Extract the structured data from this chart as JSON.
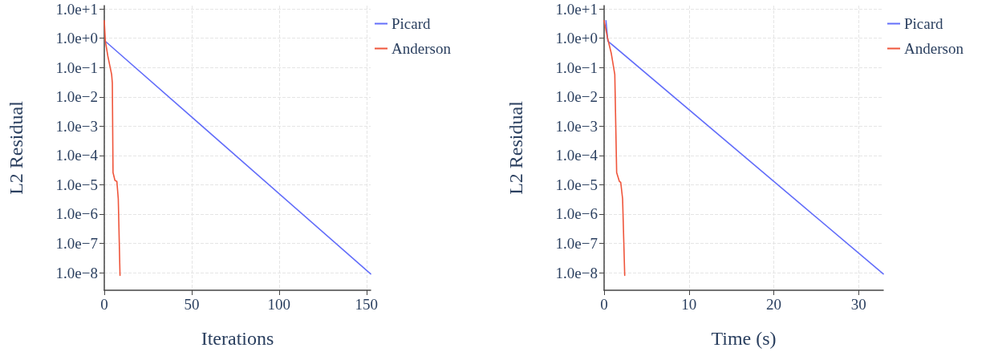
{
  "chart_data": [
    {
      "type": "line",
      "xlabel": "Iterations",
      "ylabel": "L2 Residual",
      "log": "y",
      "grid": true,
      "legend": "top right",
      "marker": "none",
      "line_style": "solid",
      "xlim": [
        0,
        152.4
      ],
      "xticks": [
        0,
        50,
        100,
        150
      ],
      "ylim": [
        2.5e-09,
        13
      ],
      "yticks": [
        {
          "value": 10,
          "label": "1.0e+1"
        },
        {
          "value": 1,
          "label": "1.0e+0"
        },
        {
          "value": 0.1,
          "label": "1.0e−1"
        },
        {
          "value": 0.01,
          "label": "1.0e−2"
        },
        {
          "value": 0.001,
          "label": "1.0e−3"
        },
        {
          "value": 0.0001,
          "label": "1.0e−4"
        },
        {
          "value": 1e-05,
          "label": "1.0e−5"
        },
        {
          "value": 1e-06,
          "label": "1.0e−6"
        },
        {
          "value": 1e-07,
          "label": "1.0e−7"
        },
        {
          "value": 1e-08,
          "label": "1.0e−8"
        }
      ],
      "series": [
        {
          "name": "Picard",
          "color": "#636efa",
          "x": [
            1,
            152.4
          ],
          "values": [
            0.75,
            9e-09
          ]
        },
        {
          "name": "Anderson",
          "color": "#ef553b",
          "x": [
            0,
            0.6,
            2,
            4.2,
            4.6,
            5,
            6.1,
            7.2,
            8,
            9
          ],
          "values": [
            4,
            0.8,
            0.25,
            0.058,
            0.03,
            2.6e-05,
            1.4e-05,
            1.3e-05,
            3.3e-06,
            8e-09
          ]
        }
      ]
    },
    {
      "type": "line",
      "xlabel": "Time (s)",
      "ylabel": "L2 Residual",
      "log": "y",
      "grid": true,
      "legend": "top right",
      "marker": "none",
      "line_style": "solid",
      "xlim": [
        0,
        32.9
      ],
      "xticks": [
        0,
        10,
        20,
        30
      ],
      "ylim": [
        2.5e-09,
        13
      ],
      "yticks": [
        {
          "value": 10,
          "label": "1.0e+1"
        },
        {
          "value": 1,
          "label": "1.0e+0"
        },
        {
          "value": 0.1,
          "label": "1.0e−1"
        },
        {
          "value": 0.01,
          "label": "1.0e−2"
        },
        {
          "value": 0.001,
          "label": "1.0e−3"
        },
        {
          "value": 0.0001,
          "label": "1.0e−4"
        },
        {
          "value": 1e-05,
          "label": "1.0e−5"
        },
        {
          "value": 1e-06,
          "label": "1.0e−6"
        },
        {
          "value": 1e-07,
          "label": "1.0e−7"
        },
        {
          "value": 1e-08,
          "label": "1.0e−8"
        }
      ],
      "series": [
        {
          "name": "Picard",
          "color": "#636efa",
          "x": [
            0.22,
            0.44,
            32.9
          ],
          "values": [
            4,
            0.8,
            9e-09
          ]
        },
        {
          "name": "Anderson",
          "color": "#ef553b",
          "x": [
            0,
            0.38,
            0.85,
            1.26,
            1.48,
            1.8,
            1.96,
            2.18,
            2.43
          ],
          "values": [
            4,
            1.1,
            0.3,
            0.058,
            2.6e-05,
            1.3e-05,
            1.2e-05,
            3.3e-06,
            8e-09
          ]
        }
      ]
    }
  ]
}
